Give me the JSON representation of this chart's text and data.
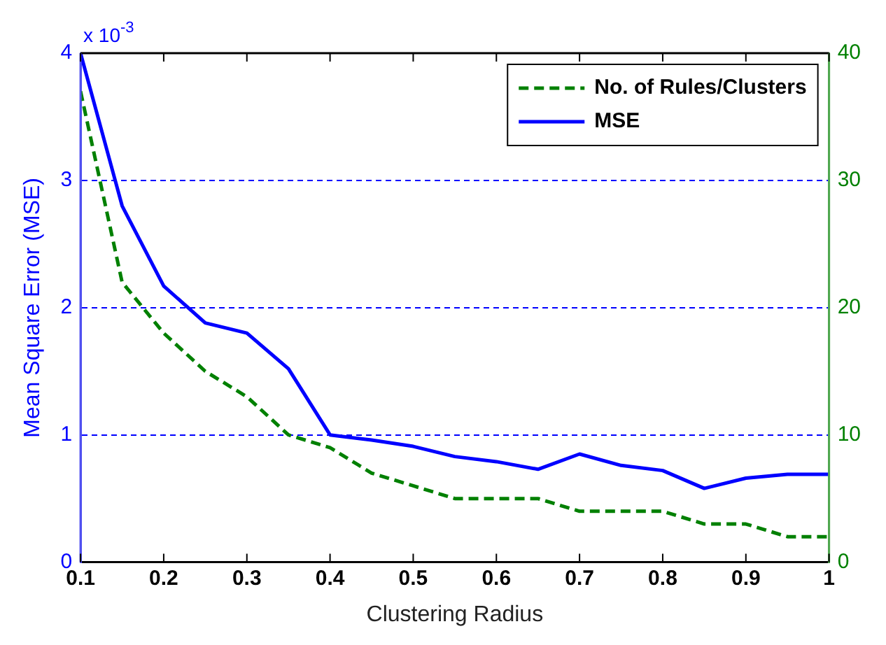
{
  "chart_data": {
    "type": "line",
    "xlabel": "Clustering Radius",
    "ylabel": "Mean Square Error (MSE)",
    "annotations": [
      "x 10$^{-3}$"
    ],
    "x": [
      0.1,
      0.15,
      0.2,
      0.25,
      0.3,
      0.35,
      0.4,
      0.45,
      0.5,
      0.55,
      0.6,
      0.65,
      0.7,
      0.75,
      0.8,
      0.85,
      0.9,
      0.95,
      1
    ],
    "series": [
      {
        "name": "No. of Rules/Clusters",
        "color": "#008000",
        "axis": "y2",
        "line_style": "dashed",
        "values": [
          37,
          22,
          18,
          15,
          13,
          10,
          9,
          7,
          6,
          5,
          5,
          5,
          4,
          4,
          4,
          3,
          3,
          2,
          2
        ]
      },
      {
        "name": "MSE",
        "color": "#0000ff",
        "line_style": "solid",
        "values": [
          4.0,
          2.8,
          2.17,
          1.88,
          1.8,
          1.52,
          1.0,
          0.96,
          0.91,
          0.83,
          0.79,
          0.73,
          0.85,
          0.76,
          0.72,
          0.58,
          0.66,
          0.69,
          0.69
        ]
      }
    ],
    "xlim": [
      0.1,
      1
    ],
    "xticks": [
      {
        "value": 0.1,
        "label": "0.1"
      },
      {
        "value": 0.2,
        "label": "0.2"
      },
      {
        "value": 0.3,
        "label": "0.3"
      },
      {
        "value": 0.4,
        "label": "0.4"
      },
      {
        "value": 0.5,
        "label": "0.5"
      },
      {
        "value": 0.6,
        "label": "0.6"
      },
      {
        "value": 0.7,
        "label": "0.7"
      },
      {
        "value": 0.8,
        "label": "0.8"
      },
      {
        "value": 0.9,
        "label": "0.9"
      },
      1
    ],
    "ylim": [
      0,
      4
    ],
    "yticks": [
      0,
      1,
      2,
      3,
      4
    ],
    "y2lim": [
      0,
      40
    ],
    "y2ticks": [
      0,
      10,
      20,
      30,
      40
    ],
    "grid": "y",
    "legend": "top right",
    "marker": "none"
  }
}
